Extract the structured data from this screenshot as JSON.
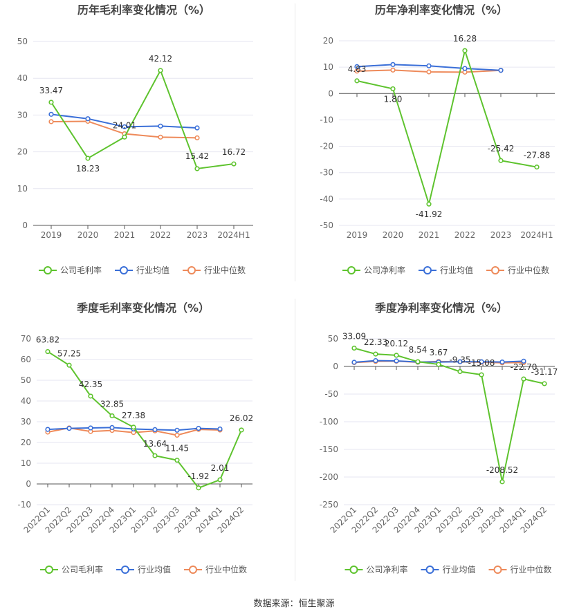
{
  "source_text": "数据来源：恒生聚源",
  "colors": {
    "company": "#5ec32e",
    "avg": "#3a6fd8",
    "median": "#ee8a5a",
    "grid": "#e6e6f0",
    "axis": "#666666",
    "label": "#333333"
  },
  "chart_data": [
    {
      "type": "line",
      "title": "历年毛利率变化情况（%）",
      "categories": [
        "2019",
        "2020",
        "2021",
        "2022",
        "2023",
        "2024H1"
      ],
      "ylim": [
        0,
        50
      ],
      "yticks": [
        0,
        10,
        20,
        30,
        40,
        50
      ],
      "rotate_x": false,
      "grid": true,
      "legend_position": "bottom",
      "series": [
        {
          "name": "公司毛利率",
          "role": "company",
          "values": [
            33.47,
            18.23,
            24.01,
            42.12,
            15.42,
            16.72
          ],
          "labels": [
            "33.47",
            "18.23",
            "24.01",
            "42.12",
            "15.42",
            "16.72"
          ]
        },
        {
          "name": "行业均值",
          "role": "avg",
          "values": [
            30.2,
            29.0,
            26.8,
            27.0,
            26.5,
            null
          ]
        },
        {
          "name": "行业中位数",
          "role": "median",
          "values": [
            28.2,
            28.3,
            24.9,
            24.0,
            23.8,
            null
          ]
        }
      ]
    },
    {
      "type": "line",
      "title": "历年净利率变化情况（%）",
      "categories": [
        "2019",
        "2020",
        "2021",
        "2022",
        "2023",
        "2024H1"
      ],
      "ylim": [
        -50,
        20
      ],
      "yticks": [
        -50,
        -40,
        -30,
        -20,
        -10,
        0,
        10,
        20
      ],
      "rotate_x": false,
      "grid": true,
      "legend_position": "bottom",
      "series": [
        {
          "name": "公司净利率",
          "role": "company",
          "values": [
            4.83,
            1.8,
            -41.92,
            16.28,
            -25.42,
            -27.88
          ],
          "labels": [
            "4.83",
            "1.80",
            "-41.92",
            "16.28",
            "-25.42",
            "-27.88"
          ]
        },
        {
          "name": "行业均值",
          "role": "avg",
          "values": [
            10.2,
            11.0,
            10.5,
            9.5,
            8.8,
            null
          ]
        },
        {
          "name": "行业中位数",
          "role": "median",
          "values": [
            8.5,
            8.9,
            8.2,
            8.1,
            8.8,
            null
          ]
        }
      ]
    },
    {
      "type": "line",
      "title": "季度毛利率变化情况（%）",
      "categories": [
        "2022Q1",
        "2022Q2",
        "2022Q3",
        "2022Q4",
        "2023Q1",
        "2023Q2",
        "2023Q3",
        "2023Q4",
        "2024Q1",
        "2024Q2"
      ],
      "ylim": [
        -10,
        70
      ],
      "yticks": [
        -10,
        0,
        10,
        20,
        30,
        40,
        50,
        60,
        70
      ],
      "rotate_x": true,
      "grid": true,
      "legend_position": "bottom",
      "series": [
        {
          "name": "公司毛利率",
          "role": "company",
          "values": [
            63.82,
            57.25,
            42.35,
            32.85,
            27.38,
            13.64,
            11.45,
            -1.92,
            2.01,
            26.02
          ],
          "labels": [
            "63.82",
            "57.25",
            "42.35",
            "32.85",
            "27.38",
            "13.64",
            "11.45",
            "-1.92",
            "2.01",
            "26.02"
          ]
        },
        {
          "name": "行业均值",
          "role": "avg",
          "values": [
            26.3,
            26.8,
            27.0,
            27.2,
            26.5,
            26.2,
            25.9,
            26.8,
            26.5,
            null
          ]
        },
        {
          "name": "行业中位数",
          "role": "median",
          "values": [
            25.0,
            27.0,
            25.3,
            25.8,
            24.8,
            25.6,
            23.5,
            26.3,
            26.0,
            null
          ]
        }
      ]
    },
    {
      "type": "line",
      "title": "季度净利率变化情况（%）",
      "categories": [
        "2022Q1",
        "2022Q2",
        "2022Q3",
        "2022Q4",
        "2023Q1",
        "2023Q2",
        "2023Q3",
        "2023Q4",
        "2024Q1",
        "2024Q2"
      ],
      "ylim": [
        -250,
        50
      ],
      "yticks": [
        -250,
        -200,
        -150,
        -100,
        -50,
        0,
        50
      ],
      "rotate_x": true,
      "grid": true,
      "legend_position": "bottom",
      "series": [
        {
          "name": "公司净利率",
          "role": "company",
          "values": [
            33.09,
            22.33,
            20.12,
            8.54,
            3.67,
            -9.35,
            -15.08,
            -208.52,
            -22.7,
            -31.17
          ],
          "labels": [
            "33.09",
            "22.33",
            "20.12",
            "8.54",
            "3.67",
            "-9.35",
            "-15.08",
            "-208.52",
            "-22.70",
            "-31.17"
          ]
        },
        {
          "name": "行业均值",
          "role": "avg",
          "values": [
            7.5,
            10.5,
            10.0,
            8.0,
            8.0,
            8.5,
            8.5,
            8.0,
            9.5,
            null
          ]
        },
        {
          "name": "行业中位数",
          "role": "median",
          "values": [
            7.0,
            9.0,
            9.5,
            7.5,
            9.0,
            8.5,
            7.5,
            6.5,
            7.0,
            null
          ]
        }
      ]
    }
  ]
}
